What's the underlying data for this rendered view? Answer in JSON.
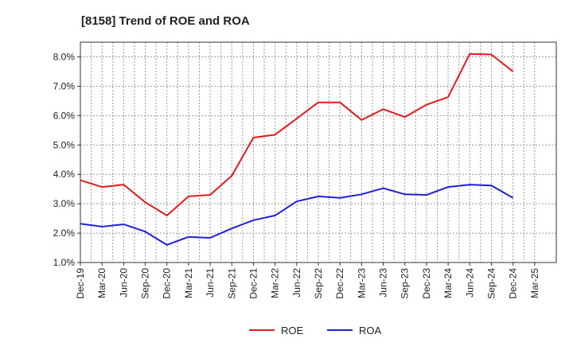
{
  "chart_data": {
    "type": "line",
    "title": "[8158]  Trend of ROE and ROA",
    "xlabel": "",
    "ylabel": "",
    "x": [
      "Dec-19",
      "Mar-20",
      "Jun-20",
      "Sep-20",
      "Dec-20",
      "Mar-21",
      "Jun-21",
      "Sep-21",
      "Dec-21",
      "Mar-22",
      "Jun-22",
      "Sep-22",
      "Dec-22",
      "Mar-23",
      "Jun-23",
      "Sep-23",
      "Dec-23",
      "Mar-24",
      "Jun-24",
      "Sep-24",
      "Dec-24",
      "Mar-25"
    ],
    "y_ticks": [
      "1.0%",
      "2.0%",
      "3.0%",
      "4.0%",
      "5.0%",
      "6.0%",
      "7.0%",
      "8.0%"
    ],
    "ylim": [
      1.0,
      8.5
    ],
    "grid": true,
    "legend_position": "bottom-center",
    "series": [
      {
        "name": "ROE",
        "color": "#e31a1c",
        "values": [
          3.8,
          3.57,
          3.65,
          3.05,
          2.6,
          3.25,
          3.3,
          3.95,
          5.25,
          5.35,
          5.9,
          6.45,
          6.45,
          5.85,
          6.22,
          5.95,
          6.37,
          6.63,
          8.1,
          8.08,
          7.5,
          null
        ]
      },
      {
        "name": "ROA",
        "color": "#1f1fd6",
        "values": [
          2.32,
          2.22,
          2.3,
          2.05,
          1.6,
          1.87,
          1.84,
          2.16,
          2.44,
          2.6,
          3.08,
          3.25,
          3.2,
          3.32,
          3.53,
          3.32,
          3.3,
          3.57,
          3.65,
          3.62,
          3.2,
          null
        ]
      }
    ]
  }
}
